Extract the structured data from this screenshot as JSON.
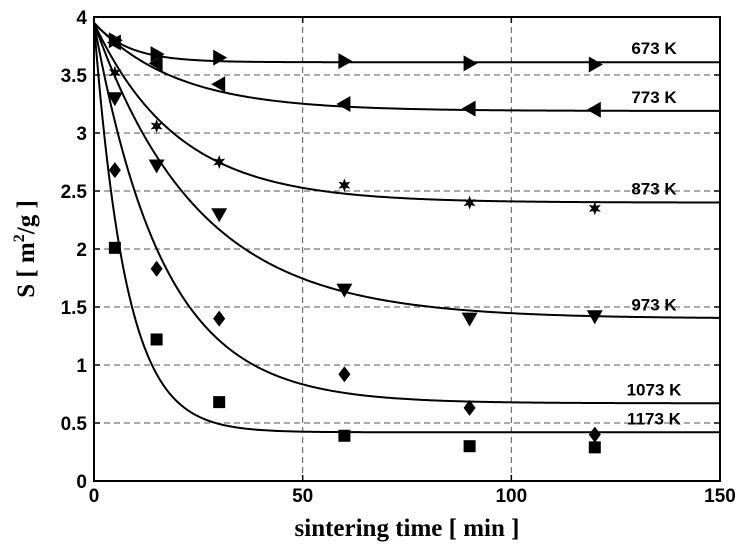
{
  "chart_data": {
    "type": "scatter",
    "xlabel": "sintering time [ min ]",
    "ylabel": {
      "base": "S [ m",
      "sup": "2",
      "tail": "/g ]"
    },
    "xlim": [
      0,
      150
    ],
    "ylim": [
      0,
      4
    ],
    "xticks": [
      0,
      50,
      100,
      150
    ],
    "yticks": [
      0,
      0.5,
      1,
      1.5,
      2,
      2.5,
      3,
      3.5,
      4
    ],
    "ytick_labels": [
      "0",
      "0.5",
      "1",
      "1.5",
      "2",
      "2.5",
      "3",
      "3.5",
      "4"
    ],
    "grid": true,
    "fit_initial_value": 3.95,
    "series": [
      {
        "name": "673 K",
        "marker": "triangle-right",
        "x": [
          5,
          15,
          30,
          60,
          90,
          120
        ],
        "y": [
          3.8,
          3.68,
          3.65,
          3.62,
          3.6,
          3.59
        ],
        "fit_final": 3.61,
        "fit_rate": 0.12
      },
      {
        "name": "773 K",
        "marker": "triangle-left",
        "x": [
          5,
          15,
          30,
          60,
          90,
          120
        ],
        "y": [
          3.78,
          3.6,
          3.42,
          3.25,
          3.21,
          3.2
        ],
        "fit_final": 3.19,
        "fit_rate": 0.05
      },
      {
        "name": "873 K",
        "marker": "star",
        "x": [
          5,
          15,
          30,
          60,
          90,
          120
        ],
        "y": [
          3.52,
          3.06,
          2.75,
          2.55,
          2.4,
          2.35
        ],
        "fit_final": 2.4,
        "fit_rate": 0.05
      },
      {
        "name": "973 K",
        "marker": "triangle-down",
        "x": [
          5,
          15,
          30,
          60,
          90,
          120
        ],
        "y": [
          3.3,
          2.72,
          2.3,
          1.65,
          1.4,
          1.42
        ],
        "fit_final": 1.4,
        "fit_rate": 0.04
      },
      {
        "name": "1073 K",
        "marker": "diamond",
        "x": [
          5,
          15,
          30,
          60,
          90,
          120
        ],
        "y": [
          2.68,
          1.83,
          1.4,
          0.92,
          0.63,
          0.4
        ],
        "fit_final": 0.67,
        "fit_rate": 0.06
      },
      {
        "name": "1173 K",
        "marker": "square",
        "x": [
          5,
          15,
          30,
          60,
          90,
          120
        ],
        "y": [
          2.01,
          1.22,
          0.68,
          0.39,
          0.3,
          0.29
        ],
        "fit_final": 0.42,
        "fit_rate": 0.13
      }
    ]
  }
}
